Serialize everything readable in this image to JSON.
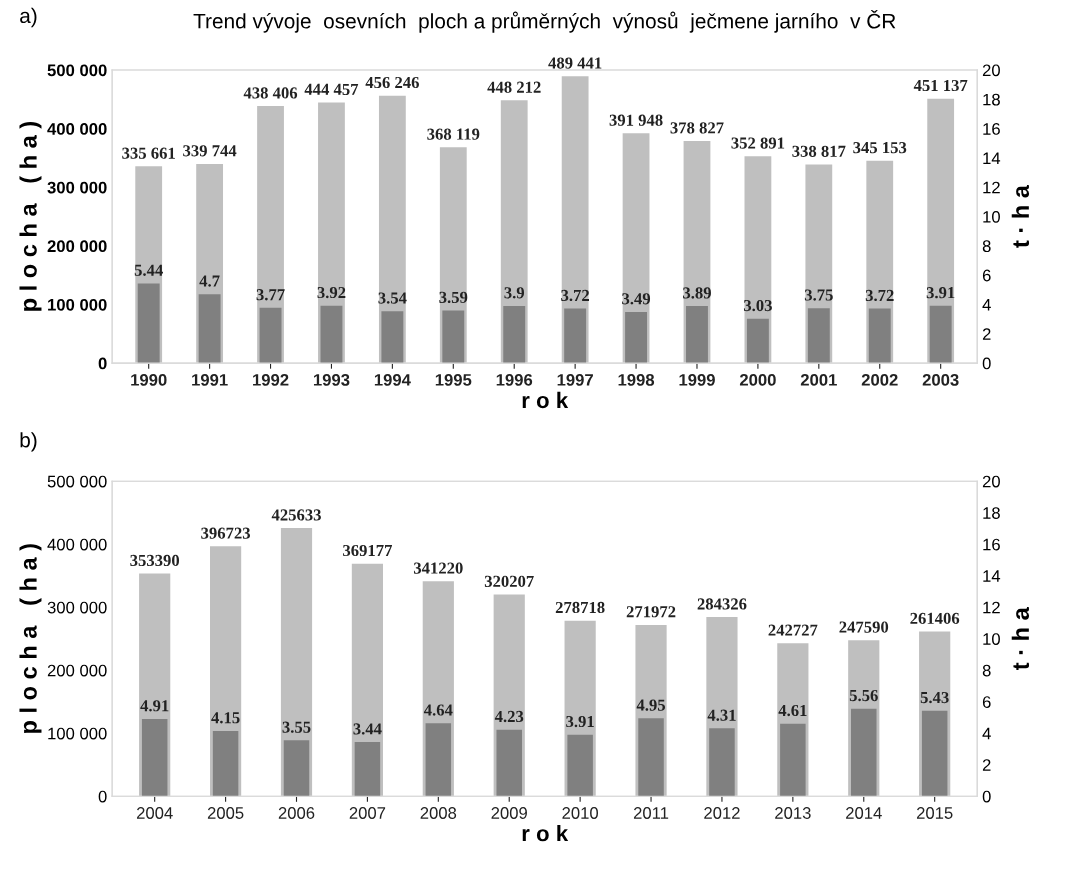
{
  "chart_data": [
    {
      "type": "bar",
      "title": "Trend vývoje  osevních  ploch a průměrných  výnosů  ječmene jarního  v ČR",
      "xlabel": "r o k",
      "ylabel": "p l o c h a   ( h a )",
      "y2label": "t · h a",
      "annotations": [
        "a)"
      ],
      "categories": [
        "1990",
        "1991",
        "1992",
        "1993",
        "1994",
        "1995",
        "1996",
        "1997",
        "1998",
        "1999",
        "2000",
        "2001",
        "2002",
        "2003"
      ],
      "ylim": [
        0,
        500000
      ],
      "yticks": [
        {
          "value": 0,
          "label": "0"
        },
        {
          "value": 100000,
          "label": "100 000"
        },
        {
          "value": 200000,
          "label": "200 000"
        },
        {
          "value": 300000,
          "label": "300 000"
        },
        {
          "value": 400000,
          "label": "400 000"
        },
        {
          "value": 500000,
          "label": "500 000"
        }
      ],
      "y2lim": [
        0,
        20
      ],
      "y2ticks": [
        0,
        2,
        4,
        6,
        8,
        10,
        12,
        14,
        16,
        18,
        20
      ],
      "grid": false,
      "legend": false,
      "series": [
        {
          "color": "#bfbfbf",
          "values": [
            335661,
            339744,
            438406,
            444457,
            456246,
            368119,
            448212,
            489441,
            391948,
            378827,
            352891,
            338817,
            345153,
            451137
          ],
          "value_labels": [
            "335 661",
            "339 744",
            "438 406",
            "444 457",
            "456 246",
            "368 119",
            "448 212",
            "489 441",
            "391 948",
            "378 827",
            "352 891",
            "338 817",
            "345 153",
            "451 137"
          ]
        },
        {
          "color": "#808080",
          "axis": "y2",
          "values": [
            5.44,
            4.7,
            3.77,
            3.92,
            3.54,
            3.59,
            3.9,
            3.72,
            3.49,
            3.89,
            3.03,
            3.75,
            3.72,
            3.91
          ],
          "value_labels": [
            "5.44",
            "4.7",
            "3.77",
            "3.92",
            "3.54",
            "3.59",
            "3.9",
            "3.72",
            "3.49",
            "3.89",
            "3.03",
            "3.75",
            "3.72",
            "3.91"
          ]
        }
      ]
    },
    {
      "type": "bar",
      "xlabel": "r o k",
      "ylabel": "p l o c h a   ( h a )",
      "y2label": "t · h a",
      "annotations": [
        "b)"
      ],
      "categories": [
        "2004",
        "2005",
        "2006",
        "2007",
        "2008",
        "2009",
        "2010",
        "2011",
        "2012",
        "2013",
        "2014",
        "2015"
      ],
      "ylim": [
        0,
        500000
      ],
      "yticks": [
        {
          "value": 0,
          "label": "0"
        },
        {
          "value": 100000,
          "label": "100 000"
        },
        {
          "value": 200000,
          "label": "200 000"
        },
        {
          "value": 300000,
          "label": "300 000"
        },
        {
          "value": 400000,
          "label": "400 000"
        },
        {
          "value": 500000,
          "label": "500 000"
        }
      ],
      "y2lim": [
        0,
        20
      ],
      "y2ticks": [
        0,
        2,
        4,
        6,
        8,
        10,
        12,
        14,
        16,
        18,
        20
      ],
      "grid": false,
      "legend": false,
      "series": [
        {
          "color": "#bfbfbf",
          "values": [
            353390,
            396723,
            425633,
            369177,
            341220,
            320207,
            278718,
            271972,
            284326,
            242727,
            247590,
            261406
          ],
          "value_labels": [
            "353390",
            "396723",
            "425633",
            "369177",
            "341220",
            "320207",
            "278718",
            "271972",
            "284326",
            "242727",
            "247590",
            "261406"
          ]
        },
        {
          "color": "#808080",
          "axis": "y2",
          "values": [
            4.91,
            4.15,
            3.55,
            3.44,
            4.64,
            4.23,
            3.91,
            4.95,
            4.31,
            4.61,
            5.56,
            5.43
          ],
          "value_labels": [
            "4.91",
            "4.15",
            "3.55",
            "3.44",
            "4.64",
            "4.23",
            "3.91",
            "4.95",
            "4.31",
            "4.61",
            "5.56",
            "5.43"
          ]
        }
      ]
    }
  ]
}
